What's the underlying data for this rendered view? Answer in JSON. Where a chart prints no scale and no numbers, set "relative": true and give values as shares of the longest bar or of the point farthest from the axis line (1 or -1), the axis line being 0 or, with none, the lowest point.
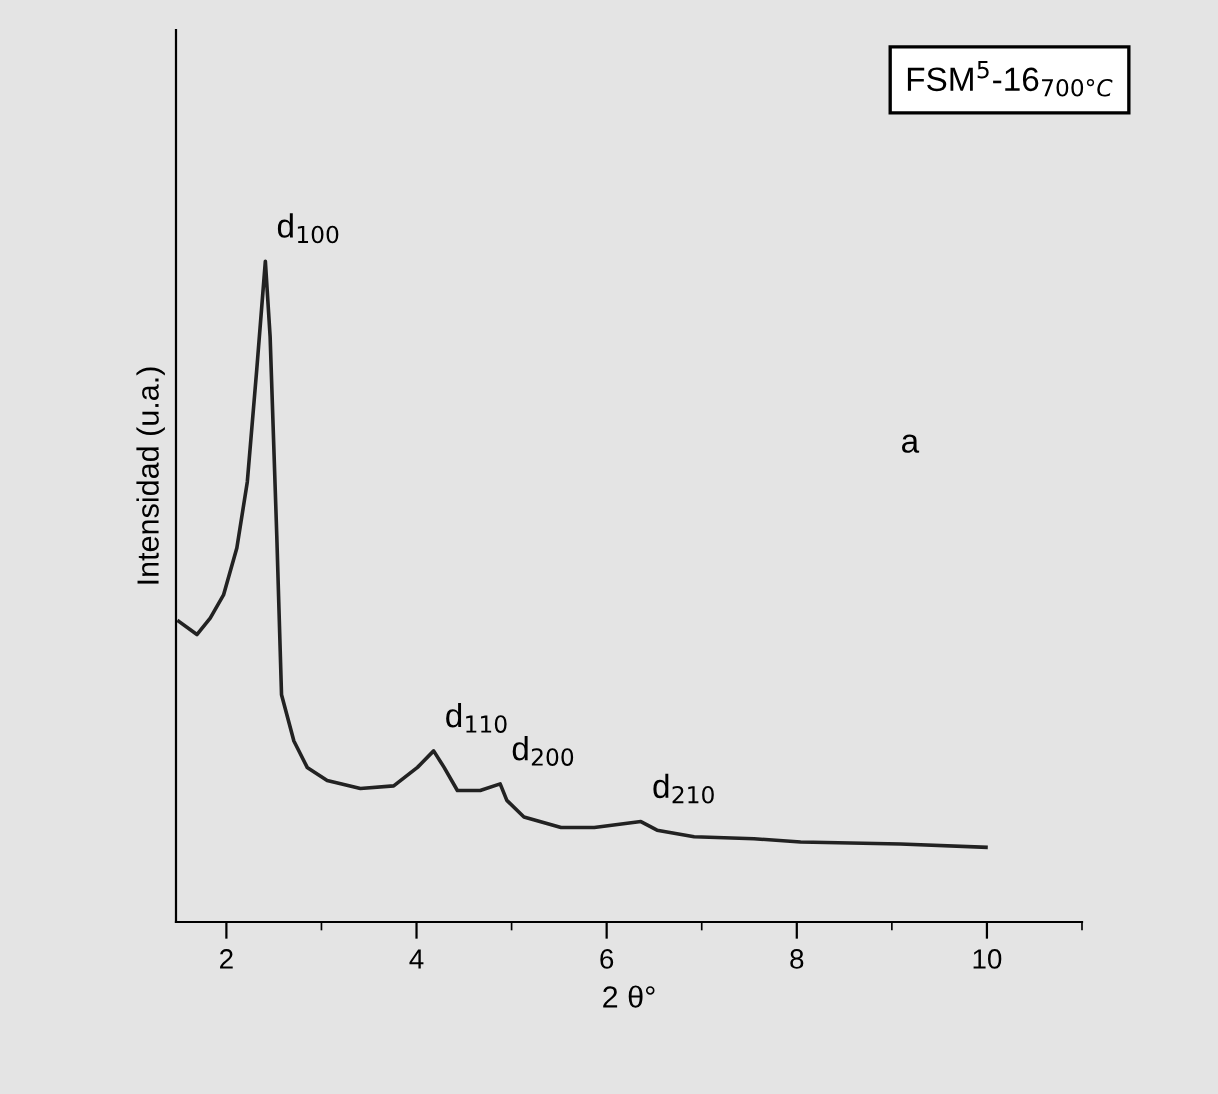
{
  "chart_data": {
    "type": "line",
    "title": "FSM$^{5}$-16$_{700°C}$",
    "xlabel": "2 θ°",
    "ylabel": "Intensidad (u.a.)",
    "relative": true,
    "tick_labels": "x",
    "grid": false,
    "legend": false,
    "marker": "none",
    "line_style": "solid",
    "xlim": [
      1.47,
      11
    ],
    "xticks": [
      2,
      {
        "value": 3,
        "label": null
      },
      4,
      {
        "value": 5,
        "label": null
      },
      6,
      {
        "value": 7,
        "label": null
      },
      8,
      {
        "value": 9,
        "label": null
      },
      10,
      {
        "value": 11,
        "label": null
      }
    ],
    "annotations": [
      {
        "text": "d$_{100}$",
        "x": 2.41,
        "y": 1
      },
      {
        "text": "d$_{110}$",
        "x": 4.18,
        "y": 0.259
      },
      {
        "text": "d$_{200}$",
        "x": 4.88,
        "y": 0.209
      },
      {
        "text": "d$_{210}$",
        "x": 6.36,
        "y": 0.152
      },
      "a"
    ],
    "series": [
      {
        "color": "#222222",
        "x": [
          1.5,
          1.69,
          1.83,
          1.97,
          2.11,
          2.22,
          2.32,
          2.41,
          2.46,
          2.53,
          2.58,
          2.71,
          2.85,
          3.06,
          3.41,
          3.76,
          4.01,
          4.18,
          4.29,
          4.43,
          4.67,
          4.88,
          4.95,
          5.13,
          5.52,
          5.87,
          6.36,
          6.53,
          6.92,
          7.55,
          8.04,
          9.09,
          9.99
        ],
        "values": [
          0.455,
          0.435,
          0.46,
          0.495,
          0.566,
          0.666,
          0.837,
          1,
          0.886,
          0.585,
          0.344,
          0.274,
          0.234,
          0.214,
          0.202,
          0.206,
          0.234,
          0.259,
          0.234,
          0.199,
          0.199,
          0.209,
          0.184,
          0.159,
          0.143,
          0.143,
          0.152,
          0.139,
          0.129,
          0.126,
          0.121,
          0.118,
          0.113
        ]
      }
    ]
  }
}
